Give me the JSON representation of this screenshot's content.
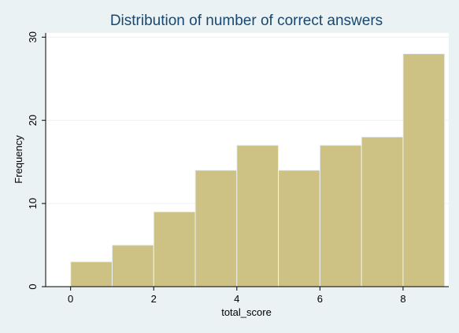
{
  "chart_data": {
    "type": "bar",
    "title": "Distribution of number of correct answers",
    "xlabel": "total_score",
    "ylabel": "Frequency",
    "bins": [
      {
        "x0": 0,
        "x1": 1,
        "value": 3
      },
      {
        "x0": 1,
        "x1": 2,
        "value": 5
      },
      {
        "x0": 2,
        "x1": 3,
        "value": 9
      },
      {
        "x0": 3,
        "x1": 4,
        "value": 14
      },
      {
        "x0": 4,
        "x1": 5,
        "value": 17
      },
      {
        "x0": 5,
        "x1": 6,
        "value": 14
      },
      {
        "x0": 6,
        "x1": 7,
        "value": 17
      },
      {
        "x0": 7,
        "x1": 8,
        "value": 18
      },
      {
        "x0": 8,
        "x1": 9,
        "value": 28
      }
    ],
    "xlim": [
      -0.6,
      9.1
    ],
    "ylim": [
      0,
      30.5
    ],
    "xticks": [
      0,
      2,
      4,
      6,
      8
    ],
    "yticks": [
      0,
      10,
      20,
      30
    ],
    "grid": true,
    "colors": {
      "background": "#eaf2f3",
      "plot_background": "#ffffff",
      "bar_fill": "#cdc284",
      "title": "#1a476f"
    }
  }
}
